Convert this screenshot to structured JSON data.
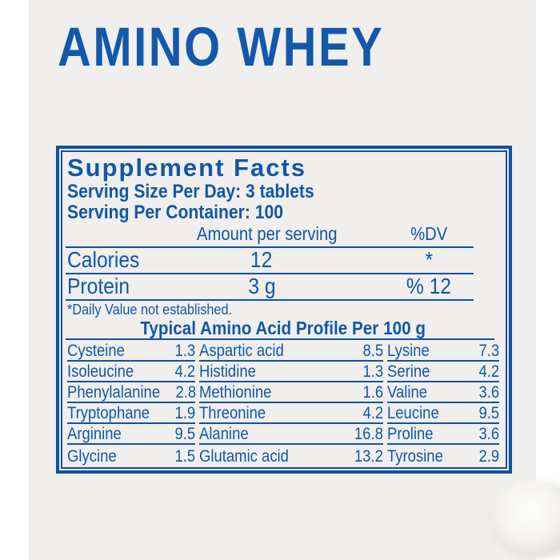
{
  "title": "AMINO WHEY",
  "colors": {
    "label_blue": "#1257a8",
    "border_blue": "#1151a3",
    "title_blue": "#1458ab",
    "photo_background": "#f0efed",
    "page_background": "#ffffff"
  },
  "panel": {
    "heading": "Supplement Facts",
    "serving_size": "Serving Size Per Day: 3 tablets",
    "servings_per_container": "Serving Per Container: 100",
    "amount_header": "Amount per serving",
    "dv_header": "%DV",
    "facts": [
      {
        "name": "Calories",
        "amount": "12",
        "dv": "*"
      },
      {
        "name": "Protein",
        "amount": "3 g",
        "dv": "% 12"
      }
    ],
    "footnote": "*Daily Value not established.",
    "amino_heading": "Typical Amino Acid Profile Per 100 g",
    "amino_rows": [
      [
        {
          "name": "Cysteine",
          "value": "1.3"
        },
        {
          "name": "Aspartic acid",
          "value": "8.5"
        },
        {
          "name": "Lysine",
          "value": "7.3"
        }
      ],
      [
        {
          "name": "Isoleucine",
          "value": "4.2"
        },
        {
          "name": "Histidine",
          "value": "1.3"
        },
        {
          "name": "Serine",
          "value": "4.2"
        }
      ],
      [
        {
          "name": "Phenylalanine",
          "value": "2.8"
        },
        {
          "name": "Methionine",
          "value": "1.6"
        },
        {
          "name": "Valine",
          "value": "3.6"
        }
      ],
      [
        {
          "name": "Tryptophane",
          "value": "1.9"
        },
        {
          "name": "Threonine",
          "value": "4.2"
        },
        {
          "name": "Leucine",
          "value": "9.5"
        }
      ],
      [
        {
          "name": "Arginine",
          "value": "9.5"
        },
        {
          "name": "Alanine",
          "value": "16.8"
        },
        {
          "name": "Proline",
          "value": "3.6"
        }
      ],
      [
        {
          "name": "Glycine",
          "value": "1.5"
        },
        {
          "name": "Glutamic acid",
          "value": "13.2"
        },
        {
          "name": "Tyrosine",
          "value": "2.9"
        }
      ]
    ]
  }
}
